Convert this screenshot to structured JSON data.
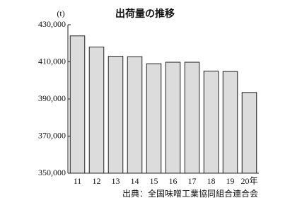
{
  "chart_data": {
    "type": "bar",
    "title": "出荷量の推移",
    "y_unit": "(t)",
    "categories": [
      "11",
      "12",
      "13",
      "14",
      "15",
      "16",
      "17",
      "18",
      "19",
      "20年"
    ],
    "values": [
      424000,
      418000,
      413000,
      412800,
      409000,
      409800,
      409800,
      405000,
      404800,
      393500
    ],
    "color": "#dcdcdc",
    "ylim": [
      350000,
      430000
    ],
    "yticks": [
      {
        "value": 350000,
        "label": "350,000"
      },
      {
        "value": 370000,
        "label": "370,000"
      },
      {
        "value": 390000,
        "label": "390,000"
      },
      {
        "value": 410000,
        "label": "410,000"
      },
      {
        "value": 430000,
        "label": "430,000"
      }
    ],
    "grid": false,
    "source": "出典：全国味噌工業協同組合連合会"
  }
}
